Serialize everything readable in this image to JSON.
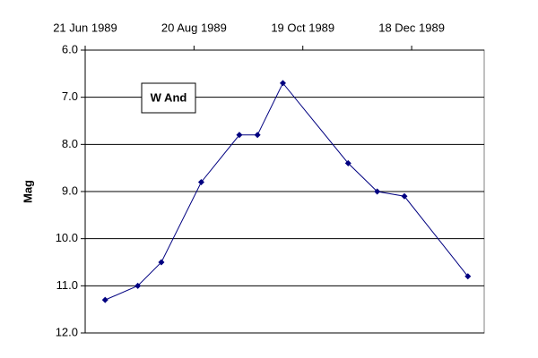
{
  "chart_data": {
    "type": "line",
    "y_label": "Mag",
    "annotation": "W And",
    "x": [
      "1989-07-02",
      "1989-07-20",
      "1989-08-02",
      "1989-08-24",
      "1989-09-14",
      "1989-09-24",
      "1989-10-08",
      "1989-11-13",
      "1989-11-29",
      "1989-12-14",
      "1990-01-18"
    ],
    "series": [
      {
        "name": "W And",
        "color": "#000080",
        "values": [
          11.3,
          11.0,
          10.5,
          8.8,
          7.8,
          7.8,
          6.7,
          8.4,
          9.0,
          9.1,
          10.8
        ]
      }
    ],
    "xlim": [
      "1989-06-21",
      "1990-01-27"
    ],
    "xticks": [
      {
        "value": "1989-06-21",
        "label": "21 Jun 1989"
      },
      {
        "value": "1989-08-20",
        "label": "20 Aug 1989"
      },
      {
        "value": "1989-10-19",
        "label": "19 Oct 1989"
      },
      {
        "value": "1989-12-18",
        "label": "18 Dec 1989"
      }
    ],
    "x_axis_position": "top",
    "ylim": [
      6,
      12
    ],
    "y_inverted": true,
    "yticks": [
      {
        "value": 6,
        "label": "6.0"
      },
      {
        "value": 7,
        "label": "7.0"
      },
      {
        "value": 8,
        "label": "8.0"
      },
      {
        "value": 9,
        "label": "9.0"
      },
      {
        "value": 10,
        "label": "10.0"
      },
      {
        "value": 11,
        "label": "11.0"
      },
      {
        "value": 12,
        "label": "12.0"
      }
    ],
    "grid": true
  }
}
